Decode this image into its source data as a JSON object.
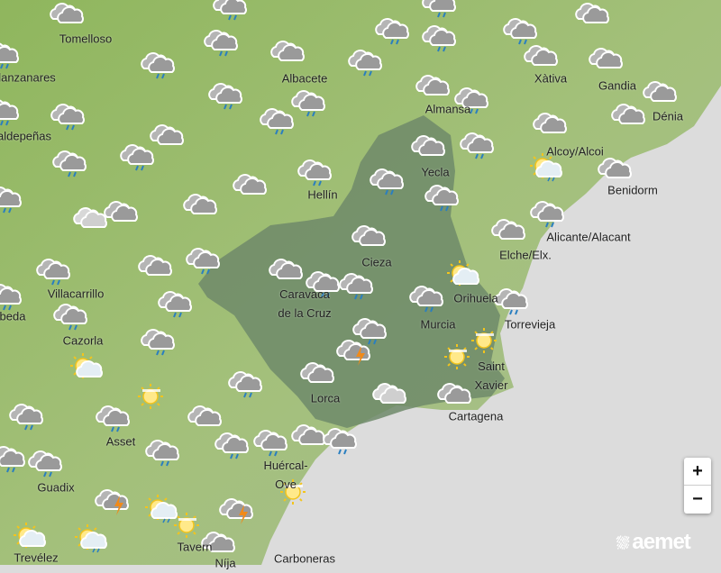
{
  "map": {
    "colors": {
      "land": "#98b86a",
      "sea": "#dcdcdc",
      "region": "#6e8a6a",
      "accent_storm": "#f08a1a",
      "rain": "#2a7fc0"
    },
    "places": [
      "Tomelloso",
      "lanzanares",
      "aldepeñas",
      "Albacete",
      "Almansa",
      "Xàtiva",
      "Gandia",
      "Dénia",
      "Alcoy/Alcoi",
      "Benidorm",
      "Yecla",
      "Hellín",
      "Alicante/Alacant",
      "Elche/Elx.",
      "Cieza",
      "Villacarrillo",
      "Caravaca\nde la Cruz",
      "beda",
      "Orihuela",
      "Murcia",
      "Torrevieja",
      "Cazorla",
      "Saint\nXavier",
      "Lorca",
      "Cartagena",
      "Asset",
      "Huércal-\nOve",
      "Guadix",
      "Trevélez",
      "Tavern",
      "Níja",
      "Carboneras"
    ],
    "forecast_icons": [
      "cloudy",
      "rain",
      "rain",
      "rain",
      "rain",
      "rain",
      "cloudy",
      "rain",
      "cloudy",
      "rain",
      "rain",
      "rain",
      "cloudy",
      "cloudy",
      "cloudy",
      "rain",
      "rain",
      "rain",
      "cloudy",
      "rain",
      "rain",
      "rain",
      "cloudy",
      "cloudy",
      "cloudy",
      "cloudy",
      "rain",
      "rain",
      "rain",
      "rain",
      "rain",
      "cloudy",
      "sun-rain",
      "cloudy",
      "rain",
      "rain",
      "cloudy",
      "cloudy-light",
      "cloudy",
      "rain",
      "cloudy",
      "cloudy",
      "rain",
      "cloudy",
      "rain",
      "cloudy",
      "rain",
      "rain",
      "sun-cloud",
      "rain",
      "rain",
      "rain",
      "rain",
      "rain",
      "rain",
      "rain",
      "storm",
      "sun-haze",
      "sun-haze",
      "sun-cloud",
      "rain",
      "cloudy",
      "cloudy-light",
      "cloudy",
      "sun-haze",
      "rain",
      "rain",
      "cloudy",
      "rain",
      "rain",
      "cloudy",
      "rain",
      "rain",
      "rain",
      "rain",
      "sun-haze",
      "storm",
      "sun-rain",
      "sun-haze",
      "storm",
      "sun-cloud",
      "sun-rain",
      "cloudy"
    ]
  },
  "controls": {
    "zoom_in": "+",
    "zoom_out": "−"
  },
  "logo": {
    "text": "aemet"
  }
}
